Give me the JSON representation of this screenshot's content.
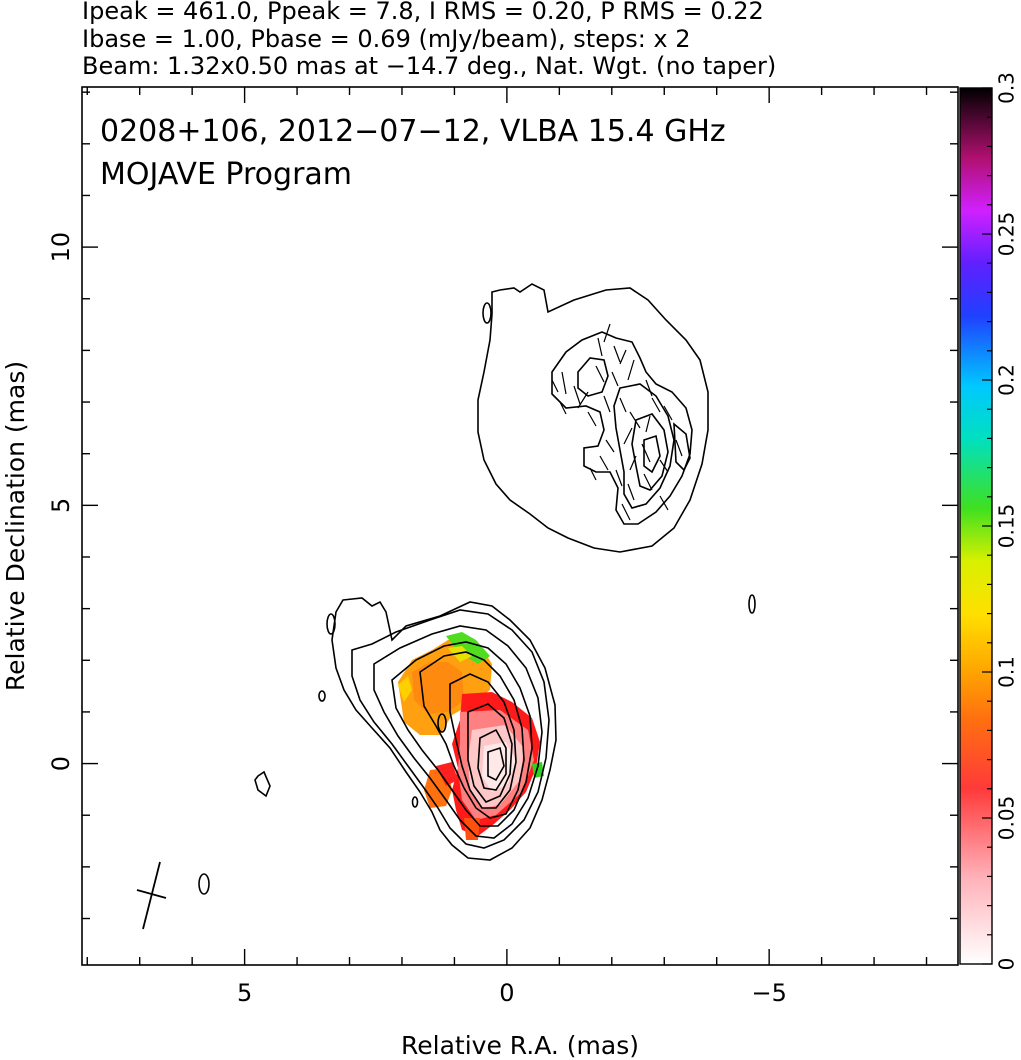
{
  "header": {
    "line1": "Ipeak = 461.0, Ppeak = 7.8, I RMS = 0.20, P RMS = 0.22",
    "line2": "Ibase = 1.00, Pbase = 0.69 (mJy/beam), steps: x 2",
    "line3": "Beam: 1.32x0.50 mas at −14.7 deg., Nat. Wgt. (no taper)"
  },
  "chart_data": {
    "type": "heatmap",
    "annotation_line1": "0208+106, 2012−07−12, VLBA 15.4 GHz",
    "annotation_line2": "MOJAVE Program",
    "xlabel": "Relative R.A. (mas)",
    "ylabel": "Relative Declination (mas)",
    "xlim": [
      8.1,
      -8.6
    ],
    "ylim": [
      -3.9,
      13.1
    ],
    "x_ticks": [
      5,
      0,
      -5
    ],
    "x_tick_labels": [
      "5",
      "0",
      "−5"
    ],
    "y_ticks": [
      0,
      5,
      10
    ],
    "y_tick_labels": [
      "0",
      "5",
      "10"
    ],
    "colorbar": {
      "range": [
        0,
        0.3
      ],
      "ticks": [
        0,
        0.05,
        0.1,
        0.15,
        0.2,
        0.25,
        0.3
      ],
      "tick_labels": [
        "0",
        "0.05",
        "0.1",
        "0.15",
        "0.2",
        "0.25",
        "0.3"
      ]
    },
    "peak_ra": 0,
    "peak_dec": 0
  }
}
